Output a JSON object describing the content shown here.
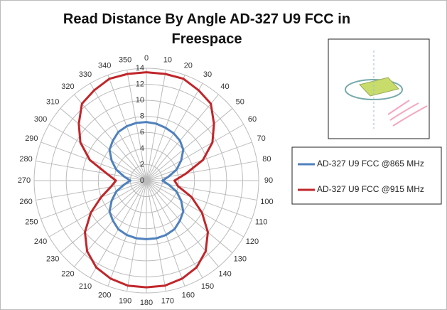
{
  "chart_data": {
    "type": "radar",
    "title": "Read Distance By Angle AD-327 U9 FCC in Freespace",
    "categories": [
      "0",
      "10",
      "20",
      "30",
      "40",
      "50",
      "60",
      "70",
      "80",
      "90",
      "100",
      "110",
      "120",
      "130",
      "140",
      "150",
      "160",
      "170",
      "180",
      "190",
      "200",
      "210",
      "220",
      "230",
      "240",
      "250",
      "260",
      "270",
      "280",
      "290",
      "300",
      "310",
      "320",
      "330",
      "340",
      "350"
    ],
    "series": [
      {
        "name": "AD-327 U9 FCC @865 MHz",
        "color": "#4f81bd",
        "values": [
          7.3,
          7.2,
          7,
          6.8,
          6.5,
          6,
          5,
          4,
          2.8,
          2,
          2.8,
          4,
          5,
          6,
          6.5,
          7,
          7.2,
          7.3,
          7.3,
          7.3,
          7.2,
          7,
          6.5,
          6,
          5,
          4,
          2.8,
          2,
          2.8,
          4,
          5,
          6,
          6.5,
          7,
          7.2,
          7.3
        ]
      },
      {
        "name": "AD-327 U9 FCC @915 MHz",
        "color": "#c0262a",
        "values": [
          13.5,
          13.5,
          13.5,
          13,
          12.5,
          11,
          9.5,
          7.5,
          5,
          3.5,
          4,
          6,
          8,
          10,
          11.5,
          12.5,
          13,
          13.3,
          13.3,
          13.3,
          13,
          12.5,
          11.5,
          10,
          8,
          6,
          4.5,
          3.8,
          5,
          7.5,
          9.5,
          11,
          12.5,
          13,
          13.5,
          13.5
        ]
      }
    ],
    "ylim": [
      0,
      14
    ],
    "yticks": [
      0,
      2,
      4,
      6,
      8,
      10,
      12,
      14
    ],
    "grid": true
  }
}
